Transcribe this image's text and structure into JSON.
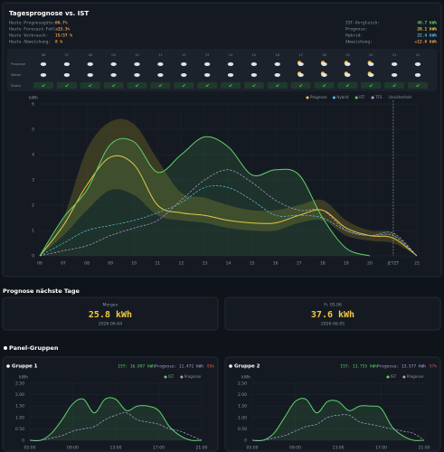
{
  "header": {
    "title": "Tagesprognose vs. IST"
  },
  "stats": {
    "left": [
      {
        "label": "Heute Prognosegüte:",
        "value": "66.7%"
      },
      {
        "label": "Heute Forecast-Fehler:",
        "value": "-13.3%"
      },
      {
        "label": "Heute Verbrauch:",
        "value": "15/37 h"
      },
      {
        "label": "Heute Abweichung:",
        "value": "8 h"
      }
    ],
    "right": [
      {
        "label": "IST-Vergleich:",
        "value": "40.7 kWh"
      },
      {
        "label": "Prognose:",
        "value": "28.1 kWh"
      },
      {
        "label": "Hybrid:",
        "value": "22.4 kWh"
      },
      {
        "label": "Abweichung:",
        "value": "+12.6 kWh"
      }
    ]
  },
  "weather": {
    "rows": [
      "Prognose",
      "Wetter",
      "Status"
    ],
    "hours": [
      "06",
      "07",
      "08",
      "09",
      "10",
      "11",
      "12",
      "13",
      "14",
      "15",
      "16",
      "17",
      "18",
      "19",
      "20",
      "21",
      "22"
    ]
  },
  "chart_data": [
    {
      "type": "line",
      "unit": "kWh",
      "x": [
        6,
        7,
        8,
        9,
        10,
        11,
        12,
        13,
        14,
        15,
        16,
        17,
        18,
        19,
        20,
        21,
        22
      ],
      "xlim": [
        6,
        22
      ],
      "xticks": [
        {
          "value": 6,
          "label": "06"
        },
        {
          "value": 7,
          "label": "07"
        },
        {
          "value": 8,
          "label": "08"
        },
        {
          "value": 9,
          "label": "09"
        },
        10,
        11,
        12,
        13,
        14,
        15,
        16,
        17,
        18,
        19,
        20,
        {
          "value": 21,
          "label": "JETZT"
        },
        22
      ],
      "now": 21,
      "ylim": [
        0,
        6
      ],
      "yticks": [
        0,
        1,
        2,
        3,
        4,
        5,
        6
      ],
      "grid": true,
      "band": {
        "name": "Unsicherheit",
        "color": "#6b6426",
        "upper": [
          0,
          1.5,
          4.2,
          5.3,
          5.2,
          3.8,
          2.5,
          2.3,
          2.0,
          1.8,
          1.8,
          2.0,
          2.2,
          1.4,
          1.0,
          0.9,
          0
        ],
        "lower": [
          0,
          0.8,
          1.8,
          2.6,
          2.4,
          1.6,
          1.4,
          1.3,
          1.1,
          1.0,
          1.0,
          1.3,
          1.4,
          0.8,
          0.6,
          0.5,
          0
        ]
      },
      "series": [
        {
          "name": "Prognose",
          "color": "#f5c842",
          "values": [
            0,
            1.2,
            2.8,
            3.9,
            3.6,
            2.0,
            1.7,
            1.6,
            1.4,
            1.3,
            1.3,
            1.6,
            1.8,
            1.1,
            0.8,
            0.7,
            0
          ]
        },
        {
          "name": "Hybrid",
          "color": "#4fc3f7",
          "dashed": true,
          "values": [
            0,
            0.5,
            1.0,
            1.2,
            1.4,
            1.7,
            2.1,
            2.7,
            2.7,
            2.2,
            1.6,
            1.6,
            1.5,
            1.0,
            0.8,
            0.8,
            0
          ]
        },
        {
          "name": "IST",
          "color": "#5fd36a",
          "fill": true,
          "values": [
            0,
            1.5,
            2.6,
            4.4,
            4.5,
            3.3,
            4.0,
            4.7,
            4.3,
            3.2,
            3.4,
            3.2,
            1.5,
            0.3,
            0,
            null,
            null
          ]
        },
        {
          "name": "TFS",
          "color": "#b39ddb",
          "dashed": true,
          "values": [
            0,
            0.2,
            0.4,
            0.8,
            1.1,
            1.4,
            2.2,
            3.0,
            3.4,
            2.9,
            2.2,
            1.8,
            1.8,
            1.0,
            0.8,
            0.9,
            0
          ]
        }
      ]
    },
    {
      "type": "line",
      "unit": "kWh",
      "x": [
        5,
        6,
        7,
        8,
        9,
        10,
        11,
        12,
        13,
        14,
        15,
        16,
        17,
        18,
        19,
        20,
        21
      ],
      "xlim": [
        5,
        21
      ],
      "xticks": [
        {
          "value": 5,
          "label": "05:00"
        },
        {
          "value": 9,
          "label": "09:00"
        },
        {
          "value": 13,
          "label": "13:00"
        },
        {
          "value": 17,
          "label": "17:00"
        },
        {
          "value": 21,
          "label": "21:00"
        }
      ],
      "ylim": [
        0,
        2.5
      ],
      "yticks": [
        0,
        {
          "value": 0.5,
          "label": "0.50"
        },
        {
          "value": 1,
          "label": "1.00"
        },
        {
          "value": 1.5,
          "label": "1.50"
        },
        {
          "value": 2,
          "label": "2.00"
        },
        {
          "value": 2.5,
          "label": "2.50"
        }
      ],
      "grid": true,
      "series": [
        {
          "name": "IST",
          "color": "#5fd36a",
          "fill": true,
          "values": [
            0,
            0,
            0.3,
            0.9,
            1.6,
            1.8,
            1.2,
            1.8,
            1.8,
            1.3,
            1.5,
            1.5,
            1.3,
            0.6,
            0.2,
            0,
            0
          ]
        },
        {
          "name": "Prognose",
          "color": "#b39ddb",
          "dashed": true,
          "values": [
            0,
            0,
            0.1,
            0.2,
            0.4,
            0.5,
            0.6,
            0.9,
            1.1,
            1.2,
            0.9,
            0.8,
            0.7,
            0.5,
            0.4,
            0.2,
            0
          ]
        }
      ]
    },
    {
      "type": "line",
      "unit": "kWh",
      "x": [
        5,
        6,
        7,
        8,
        9,
        10,
        11,
        12,
        13,
        14,
        15,
        16,
        17,
        18,
        19,
        20,
        21
      ],
      "xlim": [
        5,
        21
      ],
      "xticks": [
        {
          "value": 5,
          "label": "05:00"
        },
        {
          "value": 9,
          "label": "09:00"
        },
        {
          "value": 13,
          "label": "13:00"
        },
        {
          "value": 17,
          "label": "17:00"
        },
        {
          "value": 21,
          "label": "21:00"
        }
      ],
      "ylim": [
        0,
        2.5
      ],
      "yticks": [
        0,
        {
          "value": 0.5,
          "label": "0.50"
        },
        {
          "value": 1,
          "label": "1.00"
        },
        {
          "value": 1.5,
          "label": "1.50"
        },
        {
          "value": 2,
          "label": "2.00"
        },
        {
          "value": 2.5,
          "label": "2.50"
        }
      ],
      "grid": true,
      "series": [
        {
          "name": "IST",
          "color": "#5fd36a",
          "fill": true,
          "values": [
            0,
            0,
            0.3,
            1.0,
            1.7,
            1.8,
            1.2,
            1.7,
            1.7,
            1.3,
            1.5,
            1.5,
            1.4,
            0.6,
            0.2,
            0,
            0
          ]
        },
        {
          "name": "Prognose",
          "color": "#b39ddb",
          "dashed": true,
          "values": [
            0,
            0,
            0.1,
            0.2,
            0.4,
            0.6,
            0.7,
            1.0,
            1.1,
            1.1,
            0.8,
            0.7,
            0.6,
            0.5,
            0.4,
            0.3,
            0
          ]
        }
      ]
    }
  ],
  "forecast": {
    "title": "Prognose nächste Tage",
    "days": [
      {
        "label": "Morgen",
        "value": "25.8 kWh",
        "date": "2026-06-04"
      },
      {
        "label": "Fr. 05.06",
        "value": "37.6 kWh",
        "date": "2026-06-05"
      }
    ]
  },
  "groups": {
    "title": "Panel-Gruppen",
    "items": [
      {
        "name": "Gruppe 1",
        "ist": "IST: 16.897 kWh",
        "prognose": "Prognose: 11.471 kWh",
        "ratio": "93%"
      },
      {
        "name": "Gruppe 2",
        "ist": "IST: 13.755 kWh",
        "prognose": "Prognose: 13.577 kWh",
        "ratio": "57%"
      }
    ]
  }
}
